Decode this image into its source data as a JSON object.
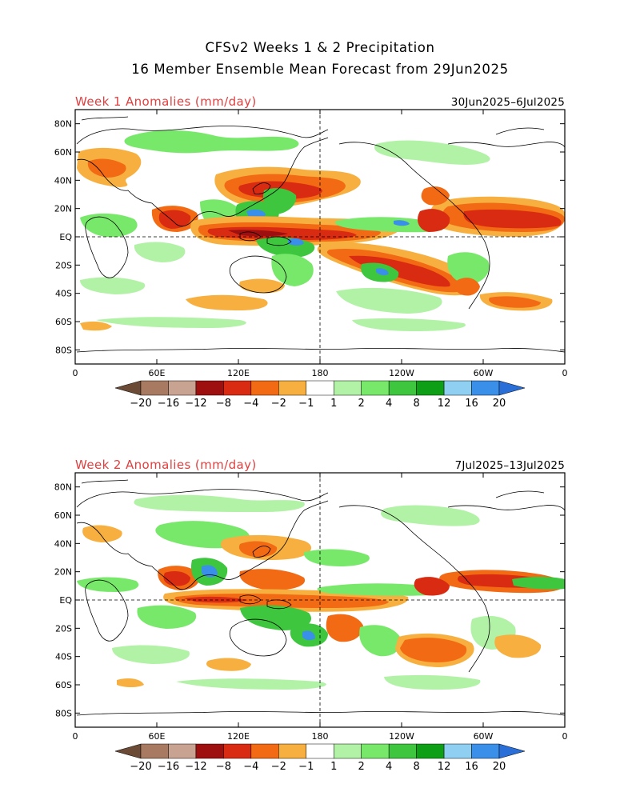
{
  "title": {
    "line1": "CFSv2 Weeks 1 & 2 Precipitation",
    "line2": "16 Member Ensemble Mean Forecast from 29Jun2025"
  },
  "panels": [
    {
      "title": "Week 1 Anomalies (mm/day)",
      "date_range": "30Jun2025–6Jul2025"
    },
    {
      "title": "Week 2 Anomalies (mm/day)",
      "date_range": "7Jul2025–13Jul2025"
    }
  ],
  "lat_labels": [
    "80N",
    "60N",
    "40N",
    "20N",
    "EQ",
    "20S",
    "40S",
    "60S",
    "80S"
  ],
  "lon_labels": [
    "0",
    "60E",
    "120E",
    "180",
    "120W",
    "60W",
    "0"
  ],
  "colorbar": {
    "labels": [
      "−20",
      "−16",
      "−12",
      "−8",
      "−4",
      "−2",
      "−1",
      "1",
      "2",
      "4",
      "8",
      "12",
      "16",
      "20"
    ],
    "colors": [
      "#6b4a36",
      "#a87a62",
      "#c9a391",
      "#9e0f0f",
      "#d92a12",
      "#f26a14",
      "#f7b03f",
      "#ffffff",
      "#b2f2a6",
      "#78e86a",
      "#3ec63e",
      "#0f9f16",
      "#8fd0f2",
      "#3a8fe8",
      "#2a6fd8"
    ]
  },
  "colors": {
    "panel_title": "#e04040",
    "dry": "#d92a12",
    "wet": "#3ec63e"
  },
  "chart_data": {
    "type": "heatmap",
    "variable": "precipitation anomaly",
    "units": "mm/day",
    "contour_levels": [
      -20,
      -16,
      -12,
      -8,
      -4,
      -2,
      -1,
      1,
      2,
      4,
      8,
      12,
      16,
      20
    ],
    "lat_range": [
      -90,
      90
    ],
    "lon_range": [
      0,
      360
    ],
    "grid": "dashed equator and 180° meridian",
    "panels": [
      {
        "name": "Week 1",
        "regions": [
          {
            "lon": [
              290,
              340
            ],
            "lat": [
              4,
              20
            ],
            "anomaly": -8
          },
          {
            "lon": [
              185,
              240
            ],
            "lat": [
              -40,
              -15
            ],
            "anomaly": -8
          },
          {
            "lon": [
              120,
              200
            ],
            "lat": [
              -5,
              15
            ],
            "anomaly": -8
          },
          {
            "lon": [
              140,
              180
            ],
            "lat": [
              20,
              45
            ],
            "anomaly": -4
          },
          {
            "lon": [
              60,
              100
            ],
            "lat": [
              5,
              25
            ],
            "anomaly": -4
          },
          {
            "lon": [
              140,
              170
            ],
            "lat": [
              -10,
              5
            ],
            "anomaly": 8
          },
          {
            "lon": [
              210,
              250
            ],
            "lat": [
              10,
              18
            ],
            "anomaly": 4
          },
          {
            "lon": [
              20,
              50
            ],
            "lat": [
              40,
              55
            ],
            "anomaly": -2
          },
          {
            "lon": [
              270,
              300
            ],
            "lat": [
              -55,
              -30
            ],
            "anomaly": -4
          }
        ]
      },
      {
        "name": "Week 2",
        "regions": [
          {
            "lon": [
              240,
              280
            ],
            "lat": [
              -45,
              -25
            ],
            "anomaly": -8
          },
          {
            "lon": [
              45,
              100
            ],
            "lat": [
              5,
              25
            ],
            "anomaly": -4
          },
          {
            "lon": [
              120,
              200
            ],
            "lat": [
              -5,
              5
            ],
            "anomaly": -4
          },
          {
            "lon": [
              270,
              340
            ],
            "lat": [
              5,
              20
            ],
            "anomaly": -4
          },
          {
            "lon": [
              140,
              170
            ],
            "lat": [
              -25,
              -10
            ],
            "anomaly": 4
          },
          {
            "lon": [
              195,
              220
            ],
            "lat": [
              -35,
              -20
            ],
            "anomaly": 4
          },
          {
            "lon": [
              60,
              140
            ],
            "lat": [
              -10,
              5
            ],
            "anomaly": 2
          }
        ]
      }
    ]
  }
}
